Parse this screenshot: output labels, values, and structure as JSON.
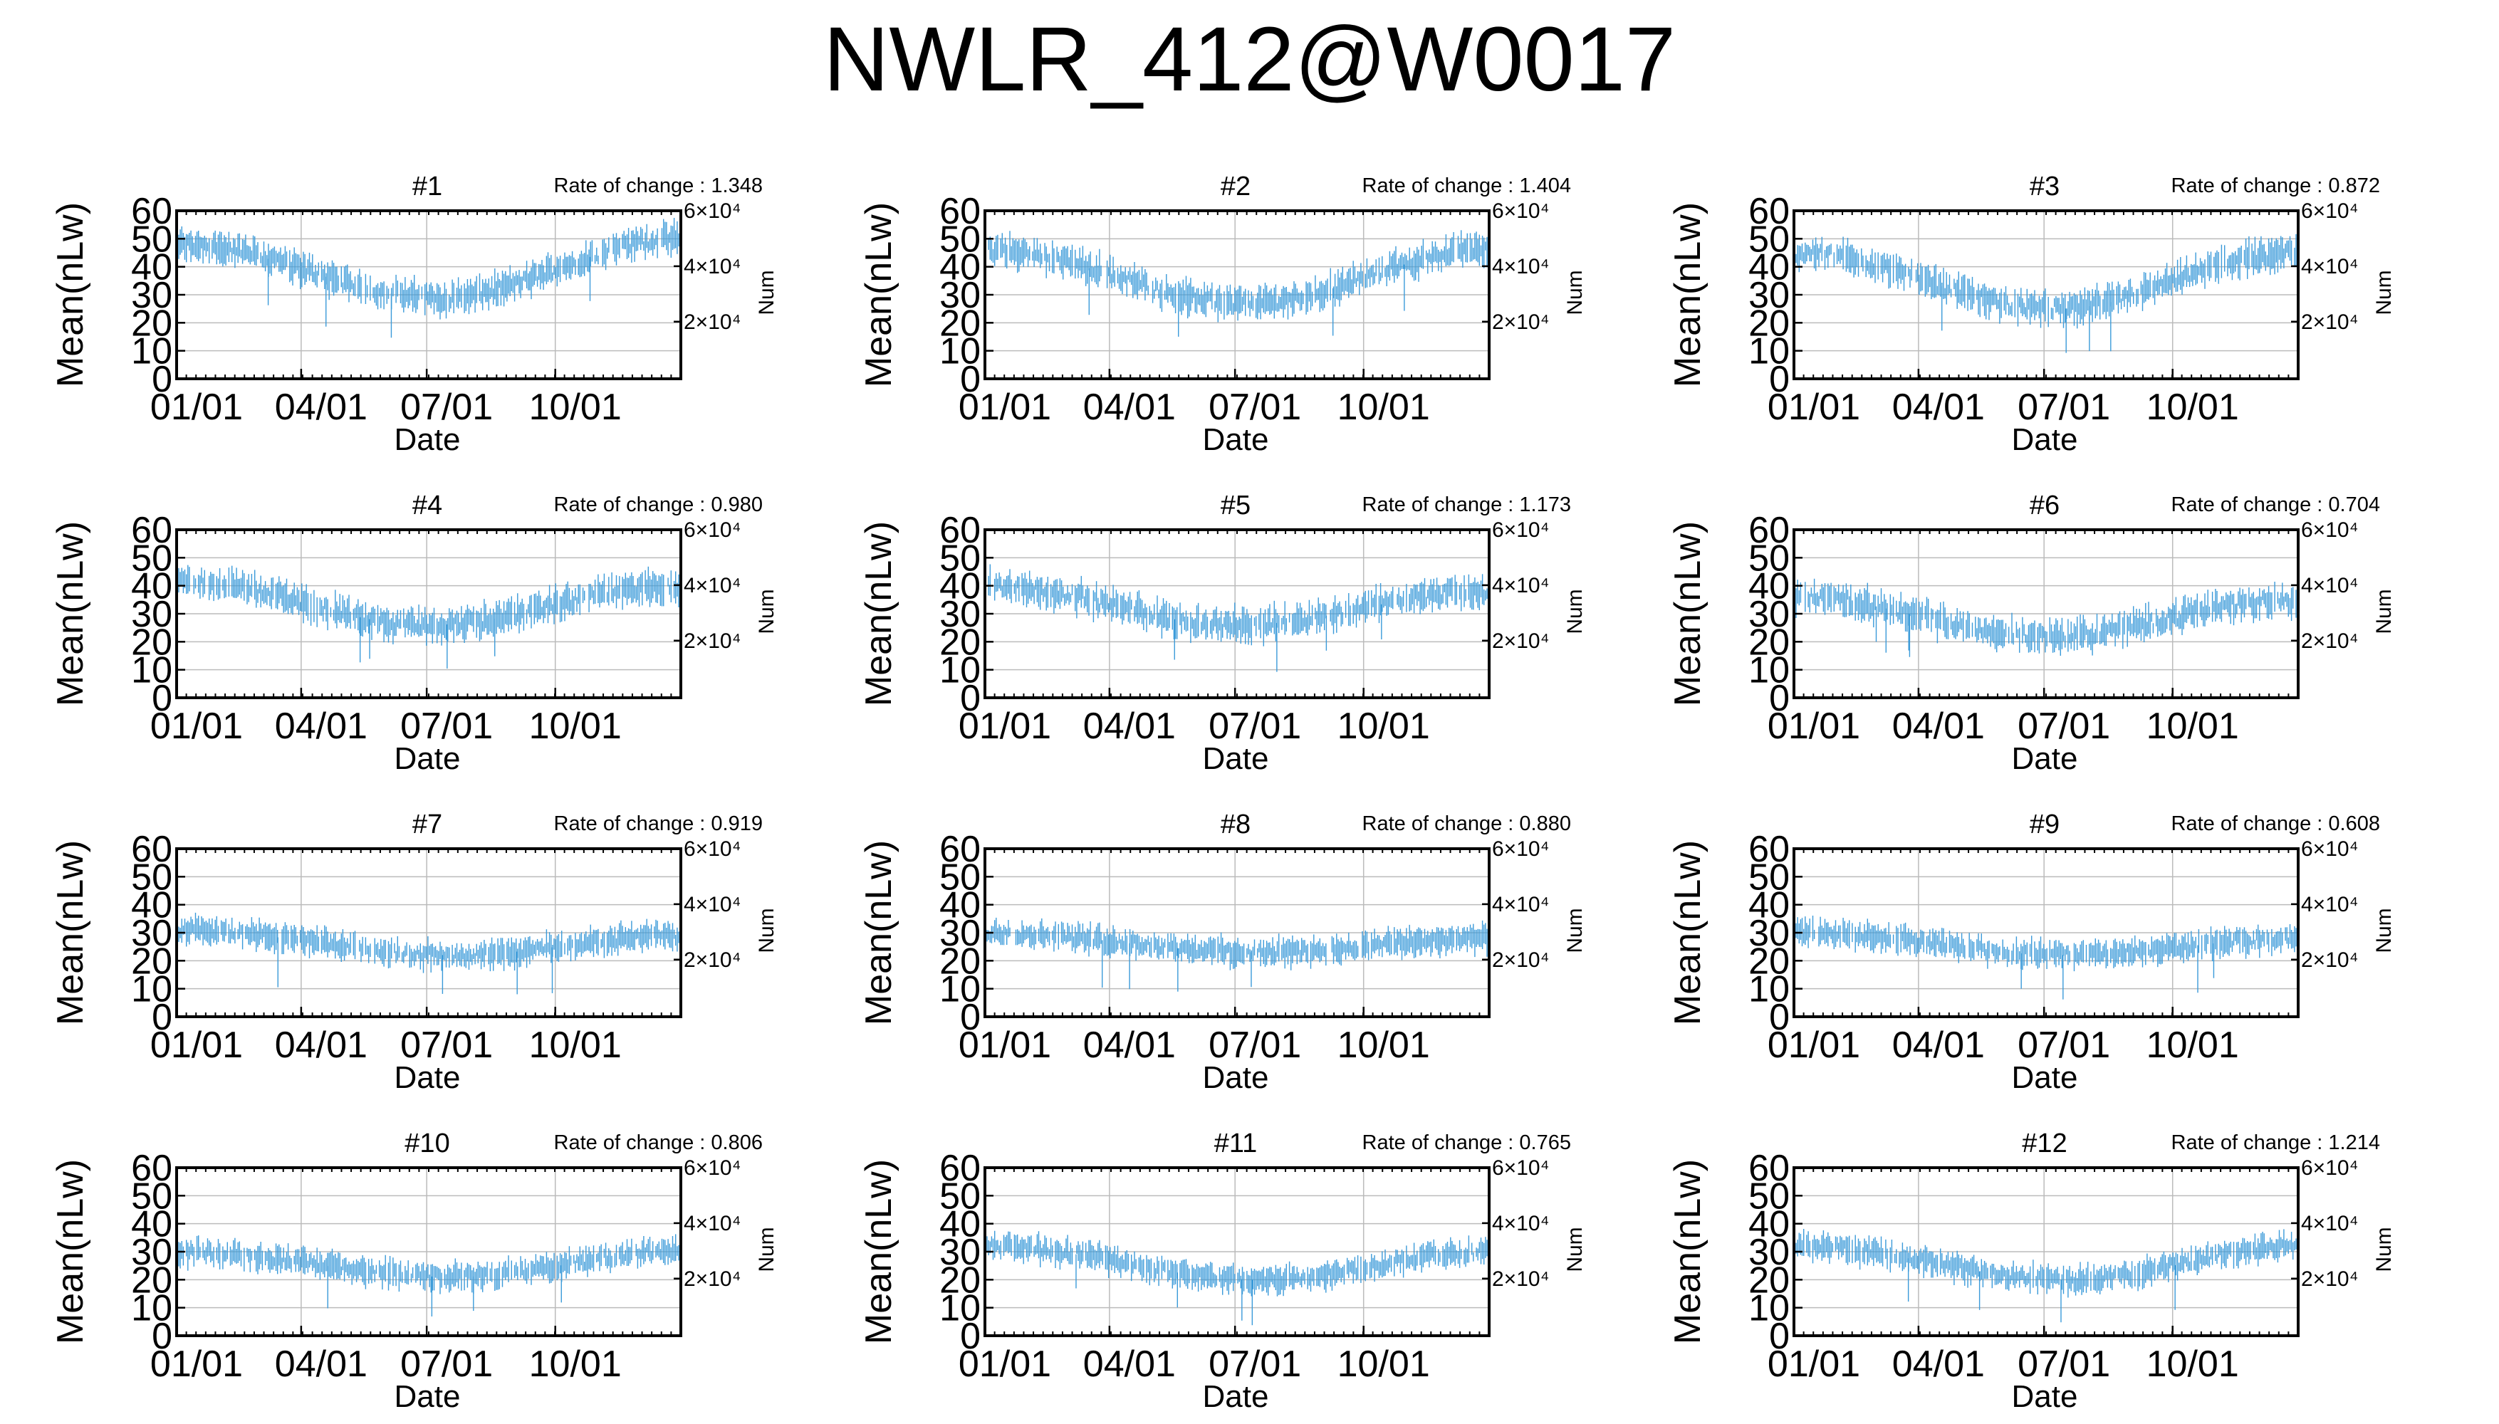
{
  "title": "NWLR_412@W0017",
  "colors": {
    "data": "#3a9ad9",
    "grid": "#bbbbbb",
    "axis": "#000000"
  },
  "chart_data": [
    {
      "type": "scatter",
      "title": "#1",
      "rate_of_change": "Rate of change : 1.348",
      "level_start": 48,
      "level_min": 29,
      "level_end": 50,
      "min_at": 0.52,
      "noise": 5,
      "xlabel": "Date",
      "ylabel": "Mean(nLw)",
      "y2label": "Num",
      "x_ticks": [
        "01/01",
        "04/01",
        "07/01",
        "10/01"
      ],
      "y_ticks": [
        0,
        10,
        20,
        30,
        40,
        50,
        60
      ],
      "y2_ticks": [
        "2×10⁴",
        "4×10⁴",
        "6×10⁴"
      ],
      "ylim": [
        0,
        60
      ],
      "grid": true
    },
    {
      "type": "scatter",
      "title": "#2",
      "rate_of_change": "Rate of change : 1.404",
      "level_start": 46,
      "level_min": 27,
      "level_end": 46,
      "min_at": 0.52,
      "noise": 5,
      "xlabel": "Date",
      "ylabel": "Mean(nLw)",
      "y2label": "Num",
      "x_ticks": [
        "01/01",
        "04/01",
        "07/01",
        "10/01"
      ],
      "y_ticks": [
        0,
        10,
        20,
        30,
        40,
        50,
        60
      ],
      "y2_ticks": [
        "2×10⁴",
        "4×10⁴",
        "6×10⁴"
      ],
      "ylim": [
        0,
        60
      ],
      "grid": true
    },
    {
      "type": "scatter",
      "title": "#3",
      "rate_of_change": "Rate of change : 0.872",
      "level_start": 45,
      "level_min": 25,
      "level_end": 45,
      "min_at": 0.52,
      "noise": 5,
      "xlabel": "Date",
      "ylabel": "Mean(nLw)",
      "y2label": "Num",
      "x_ticks": [
        "01/01",
        "04/01",
        "07/01",
        "10/01"
      ],
      "y_ticks": [
        0,
        10,
        20,
        30,
        40,
        50,
        60
      ],
      "y2_ticks": [
        "2×10⁴",
        "4×10⁴",
        "6×10⁴"
      ],
      "ylim": [
        0,
        60
      ],
      "grid": true
    },
    {
      "type": "scatter",
      "title": "#4",
      "rate_of_change": "Rate of change : 0.980",
      "level_start": 42,
      "level_min": 26,
      "level_end": 40,
      "min_at": 0.5,
      "noise": 5,
      "xlabel": "Date",
      "ylabel": "Mean(nLw)",
      "y2label": "Num",
      "x_ticks": [
        "01/01",
        "04/01",
        "07/01",
        "10/01"
      ],
      "y_ticks": [
        0,
        10,
        20,
        30,
        40,
        50,
        60
      ],
      "y2_ticks": [
        "2×10⁴",
        "4×10⁴",
        "6×10⁴"
      ],
      "ylim": [
        0,
        60
      ],
      "grid": true
    },
    {
      "type": "scatter",
      "title": "#5",
      "rate_of_change": "Rate of change : 1.173",
      "level_start": 40,
      "level_min": 26,
      "level_end": 38,
      "min_at": 0.5,
      "noise": 5,
      "xlabel": "Date",
      "ylabel": "Mean(nLw)",
      "y2label": "Num",
      "x_ticks": [
        "01/01",
        "04/01",
        "07/01",
        "10/01"
      ],
      "y_ticks": [
        0,
        10,
        20,
        30,
        40,
        50,
        60
      ],
      "y2_ticks": [
        "2×10⁴",
        "4×10⁴",
        "6×10⁴"
      ],
      "ylim": [
        0,
        60
      ],
      "grid": true
    },
    {
      "type": "scatter",
      "title": "#6",
      "rate_of_change": "Rate of change : 0.704",
      "level_start": 36,
      "level_min": 22,
      "level_end": 35,
      "min_at": 0.5,
      "noise": 5,
      "xlabel": "Date",
      "ylabel": "Mean(nLw)",
      "y2label": "Num",
      "x_ticks": [
        "01/01",
        "04/01",
        "07/01",
        "10/01"
      ],
      "y_ticks": [
        0,
        10,
        20,
        30,
        40,
        50,
        60
      ],
      "y2_ticks": [
        "2×10⁴",
        "4×10⁴",
        "6×10⁴"
      ],
      "ylim": [
        0,
        60
      ],
      "grid": true
    },
    {
      "type": "scatter",
      "title": "#7",
      "rate_of_change": "Rate of change : 0.919",
      "level_start": 31,
      "level_min": 22,
      "level_end": 29,
      "min_at": 0.55,
      "noise": 4,
      "xlabel": "Date",
      "ylabel": "Mean(nLw)",
      "y2label": "Num",
      "x_ticks": [
        "01/01",
        "04/01",
        "07/01",
        "10/01"
      ],
      "y_ticks": [
        0,
        10,
        20,
        30,
        40,
        50,
        60
      ],
      "y2_ticks": [
        "2×10⁴",
        "4×10⁴",
        "6×10⁴"
      ],
      "ylim": [
        0,
        60
      ],
      "grid": true
    },
    {
      "type": "scatter",
      "title": "#8",
      "rate_of_change": "Rate of change : 0.880",
      "level_start": 30,
      "level_min": 23,
      "level_end": 28,
      "min_at": 0.55,
      "noise": 4,
      "xlabel": "Date",
      "ylabel": "Mean(nLw)",
      "y2label": "Num",
      "x_ticks": [
        "01/01",
        "04/01",
        "07/01",
        "10/01"
      ],
      "y_ticks": [
        0,
        10,
        20,
        30,
        40,
        50,
        60
      ],
      "y2_ticks": [
        "2×10⁴",
        "4×10⁴",
        "6×10⁴"
      ],
      "ylim": [
        0,
        60
      ],
      "grid": true
    },
    {
      "type": "scatter",
      "title": "#9",
      "rate_of_change": "Rate of change : 0.608",
      "level_start": 30,
      "level_min": 22,
      "level_end": 28,
      "min_at": 0.55,
      "noise": 4,
      "xlabel": "Date",
      "ylabel": "Mean(nLw)",
      "y2label": "Num",
      "x_ticks": [
        "01/01",
        "04/01",
        "07/01",
        "10/01"
      ],
      "y_ticks": [
        0,
        10,
        20,
        30,
        40,
        50,
        60
      ],
      "y2_ticks": [
        "2×10⁴",
        "4×10⁴",
        "6×10⁴"
      ],
      "ylim": [
        0,
        60
      ],
      "grid": true
    },
    {
      "type": "scatter",
      "title": "#10",
      "rate_of_change": "Rate of change : 0.806",
      "level_start": 30,
      "level_min": 21,
      "level_end": 30,
      "min_at": 0.55,
      "noise": 4,
      "xlabel": "Date",
      "ylabel": "Mean(nLw)",
      "y2label": "Num",
      "x_ticks": [
        "01/01",
        "04/01",
        "07/01",
        "10/01"
      ],
      "y_ticks": [
        0,
        10,
        20,
        30,
        40,
        50,
        60
      ],
      "y2_ticks": [
        "2×10⁴",
        "4×10⁴",
        "6×10⁴"
      ],
      "ylim": [
        0,
        60
      ],
      "grid": true
    },
    {
      "type": "scatter",
      "title": "#11",
      "rate_of_change": "Rate of change : 0.765",
      "level_start": 32,
      "level_min": 20,
      "level_end": 30,
      "min_at": 0.55,
      "noise": 4,
      "xlabel": "Date",
      "ylabel": "Mean(nLw)",
      "y2label": "Num",
      "x_ticks": [
        "01/01",
        "04/01",
        "07/01",
        "10/01"
      ],
      "y_ticks": [
        0,
        10,
        20,
        30,
        40,
        50,
        60
      ],
      "y2_ticks": [
        "2×10⁴",
        "4×10⁴",
        "6×10⁴"
      ],
      "ylim": [
        0,
        60
      ],
      "grid": true
    },
    {
      "type": "scatter",
      "title": "#12",
      "rate_of_change": "Rate of change : 1.214",
      "level_start": 32,
      "level_min": 20,
      "level_end": 32,
      "min_at": 0.55,
      "noise": 4,
      "xlabel": "Date",
      "ylabel": "Mean(nLw)",
      "y2label": "Num",
      "x_ticks": [
        "01/01",
        "04/01",
        "07/01",
        "10/01"
      ],
      "y_ticks": [
        0,
        10,
        20,
        30,
        40,
        50,
        60
      ],
      "y2_ticks": [
        "2×10⁴",
        "4×10⁴",
        "6×10⁴"
      ],
      "ylim": [
        0,
        60
      ],
      "grid": true
    }
  ]
}
